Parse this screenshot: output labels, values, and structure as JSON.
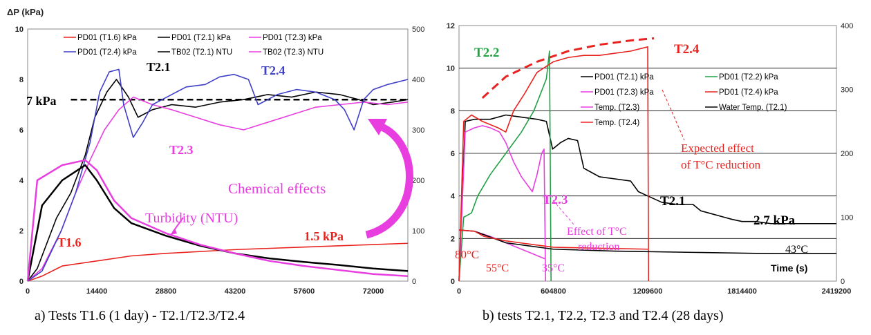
{
  "chart_data": [
    {
      "type": "line",
      "panel": "a",
      "caption": "a)    Tests T1.6 (1 day) - T2.1/T2.3/T2.4",
      "ylabel": "ΔP (kPa)",
      "xlim": [
        0,
        79200
      ],
      "ylim": [
        0,
        10
      ],
      "y2lim": [
        0,
        500
      ],
      "xticks": [
        0,
        14400,
        28800,
        43200,
        57600,
        72000
      ],
      "yticks": [
        0,
        2,
        4,
        6,
        8,
        10
      ],
      "y2ticks": [
        0,
        100,
        200,
        300,
        400,
        500
      ],
      "legend": [
        "PD01 (T1.6) kPa",
        "PD01 (T2.1) kPa",
        "PD01 (T2.3) kPa",
        "PD01 (T2.4) kPa",
        "TB02 (T2.1) NTU",
        "TB02 (T2.3) NTU"
      ],
      "legend_colors": [
        "#e8231f",
        "#000000",
        "#e83ee0",
        "#3f3fc9",
        "#000000",
        "#e83ee0"
      ],
      "legend_placement": "top",
      "series": [
        {
          "name": "PD01 (T1.6) kPa",
          "color": "#e8231f",
          "x": [
            0,
            3000,
            7200,
            14400,
            21600,
            28800,
            43200,
            57600,
            72000,
            79200
          ],
          "y": [
            0,
            0.2,
            0.6,
            0.8,
            1.0,
            1.1,
            1.25,
            1.35,
            1.45,
            1.5
          ]
        },
        {
          "name": "PD01 (T2.1) kPa",
          "color": "#000000",
          "x": [
            0,
            2000,
            6000,
            9000,
            12000,
            14000,
            16500,
            18500,
            21000,
            23000,
            26000,
            30000,
            35000,
            40000,
            45000,
            50000,
            55000,
            60000,
            65000,
            69000,
            72000,
            76000,
            79200
          ],
          "y": [
            0,
            0.5,
            2.5,
            3.5,
            5.0,
            6.5,
            7.5,
            8.0,
            7.3,
            6.5,
            6.8,
            7.0,
            6.9,
            7.1,
            7.2,
            7.4,
            7.3,
            7.5,
            7.4,
            7.2,
            7.0,
            7.1,
            7.2
          ]
        },
        {
          "name": "PD01 (T2.3) kPa",
          "color": "#e83ee0",
          "x": [
            0,
            3000,
            7000,
            10000,
            13000,
            16000,
            19000,
            22000,
            26000,
            30000,
            35000,
            40000,
            45000,
            50000,
            55000,
            60000,
            65000,
            70000,
            75000,
            79200
          ],
          "y": [
            0,
            0.5,
            2.0,
            3.5,
            4.8,
            6.0,
            6.8,
            7.3,
            7.0,
            6.8,
            6.5,
            6.2,
            6.0,
            6.3,
            6.6,
            6.9,
            7.0,
            7.1,
            7.0,
            7.1
          ]
        },
        {
          "name": "PD01 (T2.4) kPa",
          "color": "#3f3fc9",
          "x": [
            0,
            3000,
            7000,
            10000,
            13000,
            15000,
            17000,
            19000,
            20000,
            22000,
            24000,
            26000,
            30000,
            33000,
            37000,
            40000,
            43000,
            46000,
            48000,
            52000,
            56000,
            60000,
            64000,
            66000,
            68000,
            70000,
            72000,
            75000,
            79200
          ],
          "y": [
            0,
            0.4,
            2.0,
            3.5,
            5.5,
            7.5,
            8.3,
            8.4,
            7.0,
            5.7,
            6.3,
            7.0,
            7.4,
            7.7,
            7.8,
            8.1,
            8.2,
            8.0,
            7.0,
            7.4,
            7.6,
            7.5,
            7.2,
            6.8,
            6.0,
            7.2,
            7.6,
            7.8,
            8.0
          ]
        },
        {
          "name": "TB02 (T2.1) NTU",
          "color": "#000000",
          "x": [
            0,
            3000,
            7200,
            12000,
            14400,
            18000,
            21600,
            28800,
            36000,
            43200,
            50400,
            57600,
            64800,
            72000,
            79200
          ],
          "y": [
            0,
            150,
            200,
            230,
            200,
            145,
            115,
            90,
            70,
            55,
            45,
            38,
            32,
            25,
            20
          ]
        },
        {
          "name": "TB02 (T2.3) NTU",
          "color": "#e83ee0",
          "x": [
            0,
            2000,
            7200,
            12000,
            14400,
            18000,
            21600,
            28800,
            36000,
            43200,
            50400,
            57600,
            64800,
            72000,
            79200
          ],
          "y": [
            0,
            200,
            230,
            240,
            220,
            160,
            125,
            95,
            72,
            55,
            40,
            30,
            22,
            14,
            10
          ]
        }
      ],
      "reference_line": {
        "label": "7 kPa",
        "y": 7.2,
        "x": [
          9000,
          79200
        ]
      },
      "annotations": {
        "t21": "T2.1",
        "t24": "T2.4",
        "t23": "T2.3",
        "t16": "T1.6",
        "chemical": "Chemical effects",
        "turbidity": "Turbidity (NTU)",
        "kpa15": "1.5 kPa"
      }
    },
    {
      "type": "line",
      "panel": "b",
      "caption": "b) tests T2.1, T2.2, T2.3 and T2.4 (28 days)",
      "xlabel": "Time (s)",
      "xlim": [
        0,
        2419200
      ],
      "ylim": [
        0,
        12
      ],
      "y2lim": [
        0,
        400
      ],
      "xticks": [
        0,
        604800,
        1209600,
        1814400,
        2419200
      ],
      "yticks": [
        0,
        2,
        4,
        6,
        8,
        10,
        12
      ],
      "y2ticks": [
        0,
        100,
        200,
        300,
        400
      ],
      "legend": [
        "PD01 (T2.1) kPa",
        "PD01 (T2.2) kPa",
        "PD01 (T2.3) kPa",
        "PD01 (T2.4) kPa",
        "Temp. (T2.3)",
        "Water Temp. (T2.1)",
        "Temp. (T2.4)"
      ],
      "legend_colors": [
        "#000000",
        "#22a045",
        "#e83ee0",
        "#e8231f",
        "#e83ee0",
        "#000000",
        "#e8231f"
      ],
      "legend_placement": "upper-center",
      "series": [
        {
          "name": "PD01 (T2.1) kPa",
          "color": "#000000",
          "x": [
            0,
            40000,
            100000,
            200000,
            300000,
            400000,
            500000,
            560000,
            600000,
            650000,
            700000,
            760000,
            800000,
            850000,
            900000,
            1000000,
            1100000,
            1150000,
            1209600,
            1300000,
            1400000,
            1500000,
            1550000,
            1600000,
            1700000,
            1750000,
            1814400,
            1900000,
            2000000,
            2200000,
            2419200
          ],
          "y": [
            0,
            7.5,
            7.6,
            7.6,
            7.8,
            7.7,
            7.6,
            7.5,
            6.2,
            6.5,
            6.7,
            6.6,
            5.3,
            5.1,
            4.9,
            4.8,
            4.7,
            4.2,
            4.0,
            3.7,
            3.6,
            3.6,
            3.3,
            3.2,
            3.0,
            2.9,
            2.8,
            2.8,
            2.7,
            2.7,
            2.7
          ]
        },
        {
          "name": "PD01 (T2.2) kPa",
          "color": "#22a045",
          "x": [
            0,
            30000,
            80000,
            120000,
            200000,
            300000,
            400000,
            480000,
            560000,
            580000,
            590000
          ],
          "y": [
            0,
            3.0,
            3.2,
            4.0,
            5.0,
            6.0,
            7.0,
            8.0,
            9.5,
            10.8,
            0
          ]
        },
        {
          "name": "PD01 (T2.3) kPa",
          "color": "#e83ee0",
          "x": [
            0,
            40000,
            100000,
            150000,
            200000,
            260000,
            300000,
            350000,
            400000,
            440000,
            470000,
            500000,
            530000,
            545000,
            555000
          ],
          "y": [
            0,
            7.0,
            7.2,
            7.3,
            7.2,
            7.0,
            6.5,
            5.6,
            4.9,
            4.5,
            4.2,
            5.0,
            6.0,
            6.2,
            0
          ]
        },
        {
          "name": "PD01 (T2.4) kPa",
          "color": "#e8231f",
          "x": [
            0,
            30000,
            80000,
            150000,
            250000,
            300000,
            350000,
            420000,
            500000,
            604800,
            700000,
            800000,
            900000,
            1000000,
            1100000,
            1209600,
            1215000
          ],
          "y": [
            0,
            7.5,
            7.8,
            7.5,
            7.2,
            7.0,
            8.0,
            8.8,
            9.8,
            10.3,
            10.5,
            10.6,
            10.6,
            10.7,
            10.8,
            11.0,
            0
          ]
        },
        {
          "name": "Temp. (T2.3)",
          "color": "#e83ee0",
          "x": [
            0,
            100000,
            200000,
            300000,
            400000,
            500000,
            550000
          ],
          "y": [
            80,
            78,
            70,
            60,
            50,
            40,
            35
          ]
        },
        {
          "name": "Water Temp. (T2.1)",
          "color": "#000000",
          "x": [
            0,
            100000,
            300000,
            604800,
            1000000,
            1500000,
            2000000,
            2419200
          ],
          "y": [
            80,
            78,
            60,
            50,
            47,
            45,
            43,
            43
          ]
        },
        {
          "name": "Temp. (T2.4)",
          "color": "#e8231f",
          "x": [
            0,
            100000,
            160000,
            300000,
            450000,
            604800,
            800000,
            1000000,
            1209600
          ],
          "y": [
            80,
            78,
            70,
            63,
            58,
            53,
            52,
            51,
            50
          ]
        }
      ],
      "expected_curve": {
        "color": "#e8231f",
        "x": [
          150000,
          300000,
          500000,
          700000,
          900000,
          1100000,
          1250000
        ],
        "y": [
          8.6,
          9.6,
          10.3,
          10.8,
          11.1,
          11.3,
          11.4
        ]
      },
      "annotations": {
        "t22": "T2.2",
        "t24": "T2.4",
        "t23": "T2.3",
        "t21": "T2.1",
        "kpa27": "2.7 kPa",
        "expected1": "Expected effect",
        "expected2": "of T°C reduction",
        "effect1": "Effect of T°C",
        "effect2": "reduction",
        "c80": "80°C",
        "c55": "55°C",
        "c35": "35°C",
        "c43": "43°C"
      }
    }
  ]
}
